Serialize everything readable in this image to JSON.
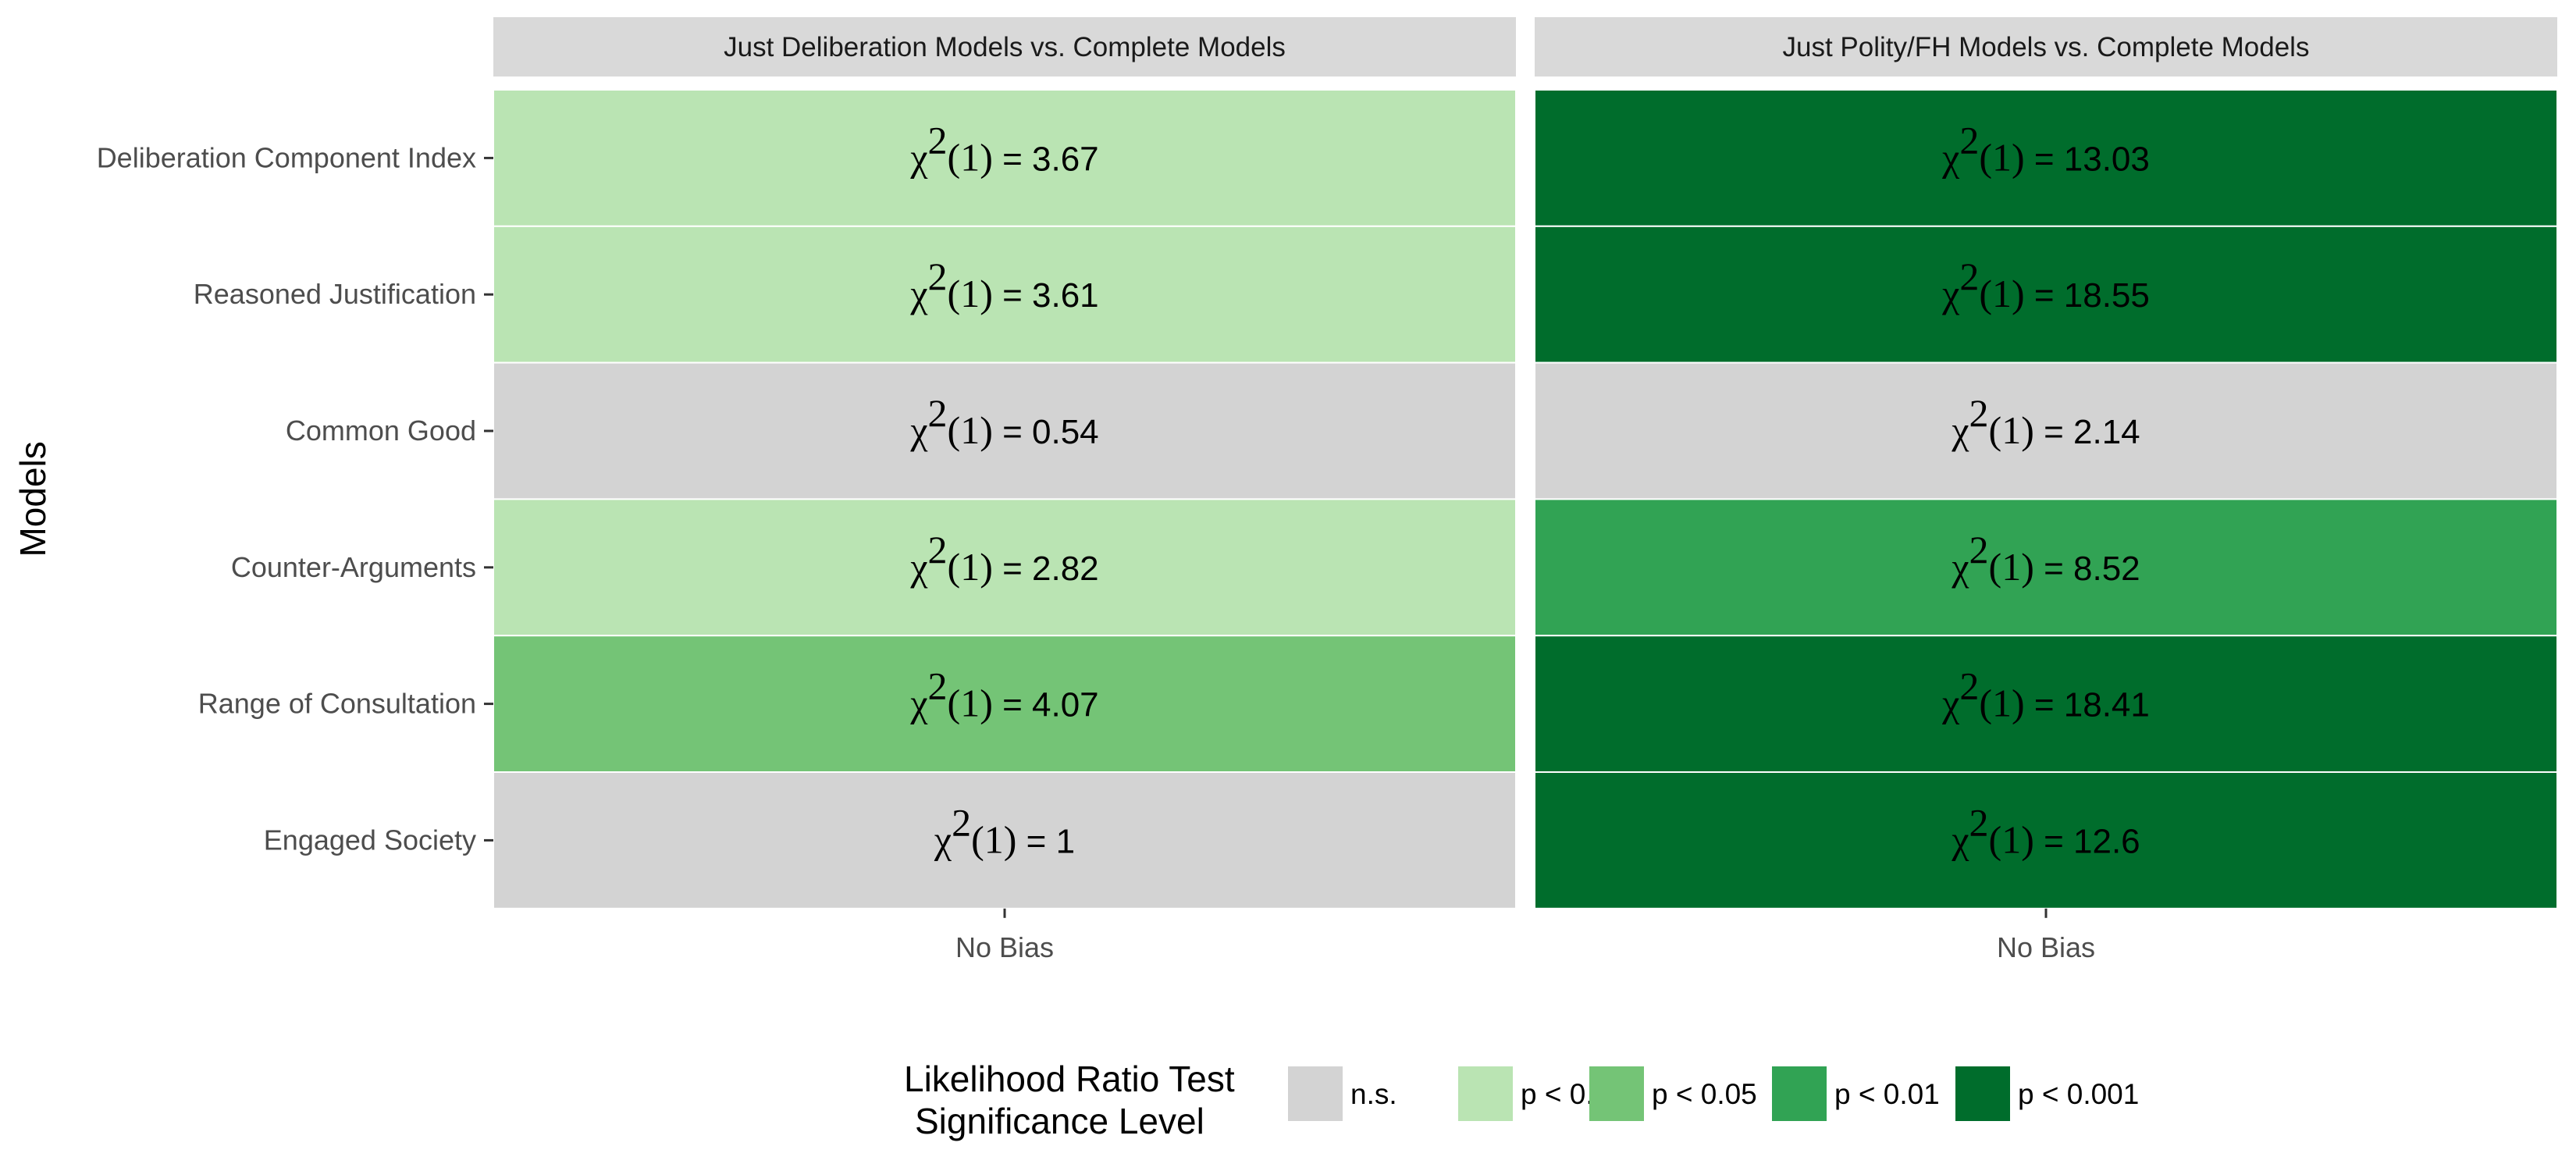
{
  "chart_data": {
    "type": "heatmap",
    "facets": [
      "Just Deliberation Models vs. Complete Models",
      "Just Polity/FH Models vs. Complete Models"
    ],
    "ylabel": "Models",
    "rows": [
      "Deliberation Component Index",
      "Reasoned Justification",
      "Common Good",
      "Counter-Arguments",
      "Range of Consultation",
      "Engaged Society"
    ],
    "x_categories": [
      "No Bias"
    ],
    "stat_label": "χ",
    "stat_sup": "2",
    "stat_df": "(1)",
    "cells": [
      [
        {
          "value": "3.67",
          "significance": "p < 0.10"
        },
        {
          "value": "3.61",
          "significance": "p < 0.10"
        },
        {
          "value": "0.54",
          "significance": "n.s."
        },
        {
          "value": "2.82",
          "significance": "p < 0.10"
        },
        {
          "value": "4.07",
          "significance": "p < 0.05"
        },
        {
          "value": "1",
          "significance": "n.s."
        }
      ],
      [
        {
          "value": "13.03",
          "significance": "p < 0.001"
        },
        {
          "value": "18.55",
          "significance": "p < 0.001"
        },
        {
          "value": "2.14",
          "significance": "n.s."
        },
        {
          "value": "8.52",
          "significance": "p < 0.01"
        },
        {
          "value": "18.41",
          "significance": "p < 0.001"
        },
        {
          "value": "12.6",
          "significance": "p < 0.001"
        }
      ]
    ],
    "legend": {
      "title_lines": [
        "Likelihood Ratio Test",
        "Significance Level"
      ],
      "placement": "bottom",
      "entries": [
        {
          "label": "n.s.",
          "color": "#d3d3d3"
        },
        {
          "label": "p < 0.10",
          "color": "#bae4b3"
        },
        {
          "label": "p < 0.05",
          "color": "#74c476"
        },
        {
          "label": "p < 0.01",
          "color": "#31a354"
        },
        {
          "label": "p < 0.001",
          "color": "#006d2c"
        }
      ]
    },
    "strip_color": "#d9d9d9"
  }
}
